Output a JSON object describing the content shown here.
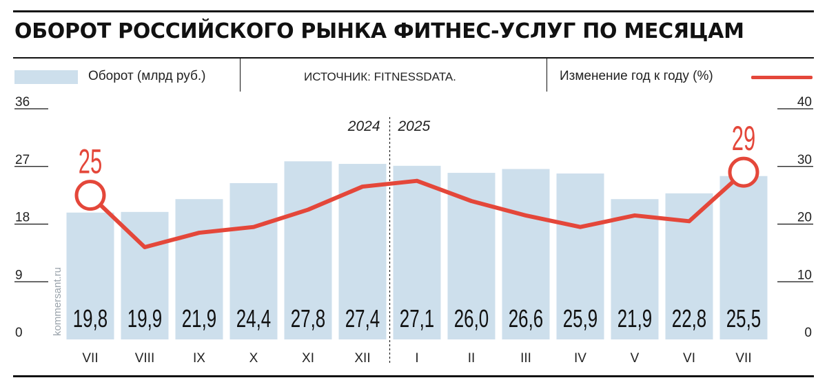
{
  "header": {
    "title": "ОБОРОТ РОССИЙСКОГО РЫНКА ФИТНЕС-УСЛУГ ПО МЕСЯЦАМ"
  },
  "legend": {
    "bars_label": "Оборот (млрд руб.)",
    "source": "ИСТОЧНИК: FITNESSDATA.",
    "line_label": "Изменение год к году (%)"
  },
  "watermark": "kommersant.ru",
  "colors": {
    "bar": "#cddfec",
    "line": "#e4473a",
    "text": "#222222"
  },
  "chart_data": {
    "type": "bar",
    "title": "ОБОРОТ РОССИЙСКОГО РЫНКА ФИТНЕС-УСЛУГ ПО МЕСЯЦАМ",
    "categories": [
      "VII",
      "VIII",
      "IX",
      "X",
      "XI",
      "XII",
      "I",
      "II",
      "III",
      "IV",
      "V",
      "VI",
      "VII"
    ],
    "year_labels": {
      "left": "2024",
      "right": "2025"
    },
    "series": [
      {
        "name": "Оборот (млрд руб.)",
        "type": "bar",
        "axis": "left",
        "values": [
          19.8,
          19.9,
          21.9,
          24.4,
          27.8,
          27.4,
          27.1,
          26.0,
          26.6,
          25.9,
          21.9,
          22.8,
          25.5
        ],
        "labels": [
          "19,8",
          "19,9",
          "21,9",
          "24,4",
          "27,8",
          "27,4",
          "27,1",
          "26,0",
          "26,6",
          "25,9",
          "21,9",
          "22,8",
          "25,5"
        ]
      },
      {
        "name": "Изменение год к году (%)",
        "type": "line",
        "axis": "right",
        "values": [
          25,
          16,
          18.5,
          19.5,
          22.5,
          26.5,
          27.5,
          24,
          21.5,
          19.5,
          21.5,
          20.5,
          29
        ],
        "highlighted": [
          {
            "index": 0,
            "label": "25"
          },
          {
            "index": 12,
            "label": "29"
          }
        ]
      }
    ],
    "y_left": {
      "ticks": [
        0,
        9,
        18,
        27,
        36
      ],
      "ylim": [
        0,
        36
      ]
    },
    "y_right": {
      "ticks": [
        0,
        10,
        20,
        30,
        40
      ],
      "ylim": [
        0,
        40
      ]
    },
    "grid": false
  }
}
